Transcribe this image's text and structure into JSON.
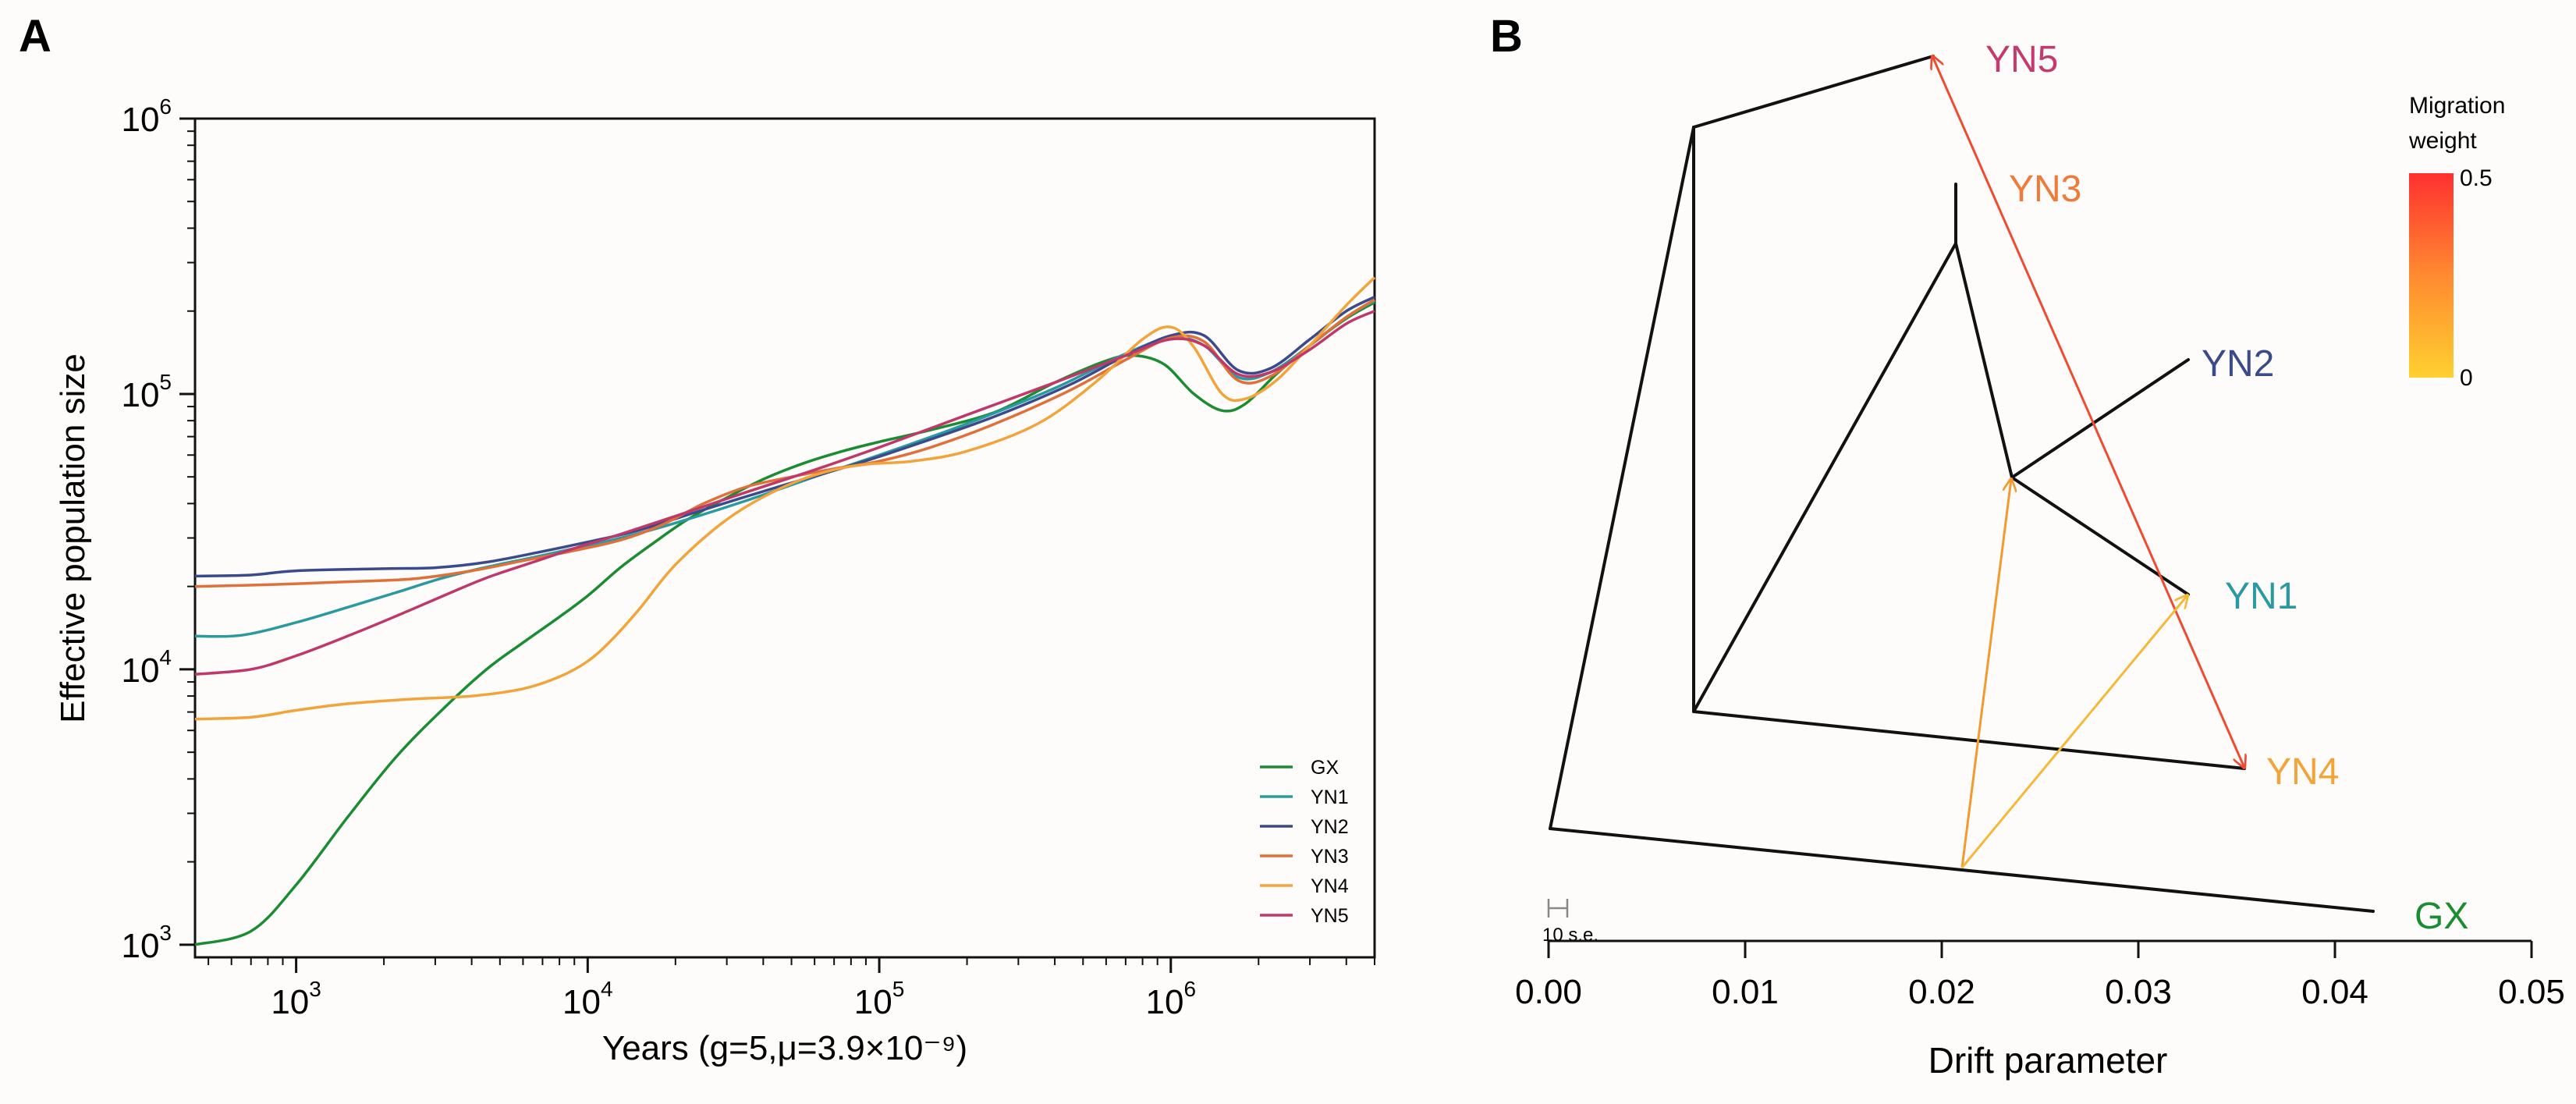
{
  "chart_data": [
    {
      "panel_label": "A",
      "type": "line",
      "xscale": "log",
      "yscale": "log",
      "xlabel": "Years (g=5,μ=3.9×10⁻⁹)",
      "ylabel": "Effective population size",
      "xlim": [
        450,
        5000000
      ],
      "ylim": [
        900,
        1000000
      ],
      "xticks": [
        {
          "value": 1000,
          "base": "10",
          "exp": "3"
        },
        {
          "value": 10000,
          "base": "10",
          "exp": "4"
        },
        {
          "value": 100000,
          "base": "10",
          "exp": "5"
        },
        {
          "value": 1000000,
          "base": "10",
          "exp": "6"
        }
      ],
      "yticks": [
        {
          "value": 1000,
          "base": "10",
          "exp": "3"
        },
        {
          "value": 10000,
          "base": "10",
          "exp": "4"
        },
        {
          "value": 100000,
          "base": "10",
          "exp": "5"
        },
        {
          "value": 1000000,
          "base": "10",
          "exp": "6"
        }
      ],
      "legend_position": "bottom-right",
      "series": [
        {
          "name": "GX",
          "color": "#1a8c32",
          "points": [
            [
              450,
              1000
            ],
            [
              700,
              1120
            ],
            [
              1000,
              1650
            ],
            [
              1500,
              2900
            ],
            [
              2200,
              4800
            ],
            [
              3200,
              7200
            ],
            [
              4500,
              10000
            ],
            [
              6000,
              12500
            ],
            [
              8000,
              15500
            ],
            [
              10000,
              18500
            ],
            [
              13000,
              23500
            ],
            [
              17000,
              29000
            ],
            [
              22000,
              35000
            ],
            [
              30000,
              42000
            ],
            [
              40000,
              49000
            ],
            [
              55000,
              56000
            ],
            [
              75000,
              62000
            ],
            [
              100000,
              67000
            ],
            [
              150000,
              74000
            ],
            [
              250000,
              86000
            ],
            [
              400000,
              110000
            ],
            [
              600000,
              132000
            ],
            [
              750000,
              138000
            ],
            [
              950000,
              128000
            ],
            [
              1200000,
              100000
            ],
            [
              1500000,
              87000
            ],
            [
              1800000,
              92000
            ],
            [
              2300000,
              118000
            ],
            [
              3000000,
              150000
            ],
            [
              4000000,
              188000
            ],
            [
              5000000,
              215000
            ]
          ]
        },
        {
          "name": "YN1",
          "color": "#2a9aa0",
          "points": [
            [
              450,
              13200
            ],
            [
              650,
              13300
            ],
            [
              1000,
              14800
            ],
            [
              1500,
              16800
            ],
            [
              2200,
              19000
            ],
            [
              3200,
              21500
            ],
            [
              4500,
              23500
            ],
            [
              6500,
              25500
            ],
            [
              9000,
              27500
            ],
            [
              13000,
              30000
            ],
            [
              20000,
              34000
            ],
            [
              35000,
              41000
            ],
            [
              60000,
              50000
            ],
            [
              100000,
              60000
            ],
            [
              200000,
              78000
            ],
            [
              400000,
              105000
            ],
            [
              700000,
              140000
            ],
            [
              1000000,
              160000
            ],
            [
              1300000,
              150000
            ],
            [
              1700000,
              115000
            ],
            [
              2200000,
              120000
            ],
            [
              3000000,
              150000
            ],
            [
              4000000,
              190000
            ],
            [
              5000000,
              218000
            ]
          ]
        },
        {
          "name": "YN2",
          "color": "#3a4a8a",
          "points": [
            [
              450,
              21800
            ],
            [
              700,
              22000
            ],
            [
              1000,
              22800
            ],
            [
              2000,
              23200
            ],
            [
              3000,
              23400
            ],
            [
              4500,
              24500
            ],
            [
              7000,
              26800
            ],
            [
              10000,
              29000
            ],
            [
              15000,
              32000
            ],
            [
              25000,
              38000
            ],
            [
              45000,
              46000
            ],
            [
              80000,
              55000
            ],
            [
              130000,
              65000
            ],
            [
              250000,
              83000
            ],
            [
              450000,
              108000
            ],
            [
              700000,
              138000
            ],
            [
              1000000,
              163000
            ],
            [
              1300000,
              163000
            ],
            [
              1700000,
              122000
            ],
            [
              2200000,
              124000
            ],
            [
              3000000,
              158000
            ],
            [
              4000000,
              200000
            ],
            [
              5000000,
              225000
            ]
          ]
        },
        {
          "name": "YN3",
          "color": "#e0703a",
          "points": [
            [
              450,
              20000
            ],
            [
              800,
              20300
            ],
            [
              1500,
              20800
            ],
            [
              2500,
              21300
            ],
            [
              4000,
              22800
            ],
            [
              6000,
              24800
            ],
            [
              9000,
              27000
            ],
            [
              13000,
              29500
            ],
            [
              18000,
              33500
            ],
            [
              25000,
              40000
            ],
            [
              35000,
              46000
            ],
            [
              50000,
              50000
            ],
            [
              70000,
              53500
            ],
            [
              100000,
              57000
            ],
            [
              150000,
              64000
            ],
            [
              250000,
              78000
            ],
            [
              450000,
              103000
            ],
            [
              700000,
              133000
            ],
            [
              1000000,
              160000
            ],
            [
              1300000,
              155000
            ],
            [
              1700000,
              112000
            ],
            [
              2200000,
              116000
            ],
            [
              3000000,
              150000
            ],
            [
              4000000,
              190000
            ],
            [
              5000000,
              220000
            ]
          ]
        },
        {
          "name": "YN4",
          "color": "#f2a43a",
          "points": [
            [
              450,
              6600
            ],
            [
              700,
              6700
            ],
            [
              1000,
              7100
            ],
            [
              1500,
              7500
            ],
            [
              2500,
              7800
            ],
            [
              4000,
              8000
            ],
            [
              6000,
              8500
            ],
            [
              8000,
              9400
            ],
            [
              10000,
              10700
            ],
            [
              12000,
              12700
            ],
            [
              15000,
              16500
            ],
            [
              20000,
              24000
            ],
            [
              30000,
              35000
            ],
            [
              45000,
              45000
            ],
            [
              65000,
              52000
            ],
            [
              90000,
              55500
            ],
            [
              130000,
              57000
            ],
            [
              200000,
              62000
            ],
            [
              350000,
              78000
            ],
            [
              550000,
              110000
            ],
            [
              800000,
              158000
            ],
            [
              1000000,
              175000
            ],
            [
              1200000,
              148000
            ],
            [
              1500000,
              100000
            ],
            [
              1800000,
              96000
            ],
            [
              2300000,
              112000
            ],
            [
              3000000,
              150000
            ],
            [
              4000000,
              210000
            ],
            [
              5000000,
              265000
            ]
          ]
        },
        {
          "name": "YN5",
          "color": "#c0386a",
          "points": [
            [
              450,
              9600
            ],
            [
              700,
              10000
            ],
            [
              1000,
              11200
            ],
            [
              1500,
              13200
            ],
            [
              2200,
              15600
            ],
            [
              3200,
              18500
            ],
            [
              4500,
              21500
            ],
            [
              6500,
              24500
            ],
            [
              9000,
              27500
            ],
            [
              13000,
              31000
            ],
            [
              20000,
              36000
            ],
            [
              35000,
              44000
            ],
            [
              60000,
              53000
            ],
            [
              100000,
              64000
            ],
            [
              200000,
              84000
            ],
            [
              400000,
              110000
            ],
            [
              700000,
              138000
            ],
            [
              1000000,
              158000
            ],
            [
              1300000,
              150000
            ],
            [
              1700000,
              118000
            ],
            [
              2200000,
              120000
            ],
            [
              3000000,
              145000
            ],
            [
              4000000,
              180000
            ],
            [
              5000000,
              200000
            ]
          ]
        }
      ]
    },
    {
      "panel_label": "B",
      "type": "tree",
      "xlabel": "Drift parameter",
      "xlim": [
        0,
        0.05
      ],
      "xticks": [
        "0.00",
        "0.01",
        "0.02",
        "0.03",
        "0.04",
        "0.05"
      ],
      "scale_bar_label": "10 s.e.",
      "legend_title_line1": "Migration",
      "legend_title_line2": "weight",
      "legend_max_label": "0.5",
      "legend_min_label": "0",
      "legend_max_value": 0.5,
      "legend_color_high": "#ff3030",
      "legend_color_low": "#ffd030",
      "leaves": [
        {
          "name": "YN5",
          "color": "#c53a6e",
          "drift": 0.0195,
          "rank": 0.0
        },
        {
          "name": "YN3",
          "color": "#f07a3a",
          "drift": 0.0205,
          "rank": 0.13
        },
        {
          "name": "YN2",
          "color": "#3a4a8a",
          "drift": 0.0325,
          "rank": 0.34
        },
        {
          "name": "YN1",
          "color": "#2a9aa0",
          "drift": 0.0325,
          "rank": 0.6
        },
        {
          "name": "YN4",
          "color": "#f2a43a",
          "drift": 0.0355,
          "rank": 0.83
        },
        {
          "name": "GX",
          "color": "#1a8c32",
          "drift": 0.042,
          "rank": 1.0
        }
      ],
      "migration_edges": [
        {
          "from": "YN5 branch",
          "to": "YN4",
          "weight": 0.5,
          "color": "#f04a30"
        },
        {
          "from": "GX branch",
          "to": "YN1-YN2 ancestor",
          "weight": 0.25,
          "color": "#f29a30"
        },
        {
          "from": "GX branch",
          "to": "YN1",
          "weight": 0.15,
          "color": "#f6b838"
        }
      ]
    }
  ]
}
